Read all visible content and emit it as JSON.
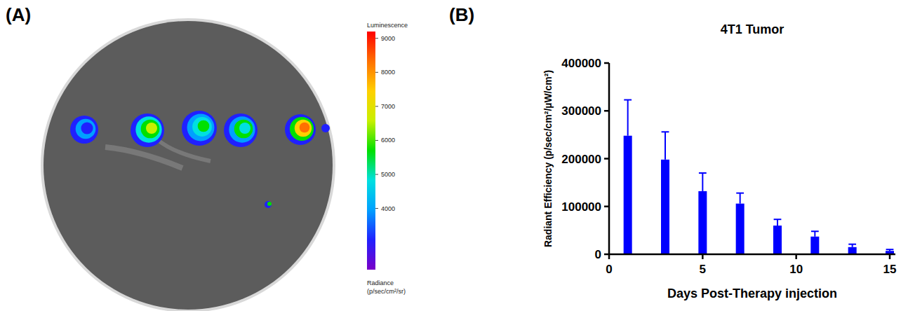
{
  "chart_data": [
    {
      "type": "image",
      "panel": "(A)",
      "colorbar_title": "Luminescence",
      "colorbar_label": "Radiance (p/sec/cm²/sr)",
      "colorbar_range": [
        2200,
        9200
      ],
      "colorbar_ticks": [
        4000,
        5000,
        6000,
        7000,
        8000,
        9000
      ]
    },
    {
      "type": "bar",
      "panel": "(B)",
      "title": "4T1 Tumor",
      "x": [
        1,
        3,
        5,
        7,
        9,
        11,
        13,
        15
      ],
      "values": [
        248000,
        198000,
        132000,
        106000,
        60000,
        37000,
        15000,
        7000
      ],
      "errors": [
        75000,
        58000,
        38000,
        22000,
        13000,
        11000,
        6000,
        3000
      ],
      "color": "#0000ff",
      "xlim": [
        0,
        15.3
      ],
      "xticks": [
        0,
        5,
        10,
        15
      ],
      "ylim": [
        0,
        400000
      ],
      "yticks": [
        0,
        100000,
        200000,
        300000,
        400000
      ],
      "x_label": "Days Post-Therapy injection",
      "y_label": "Radiant Efficiency (p/sec/cm²/µW/cm²)"
    }
  ]
}
